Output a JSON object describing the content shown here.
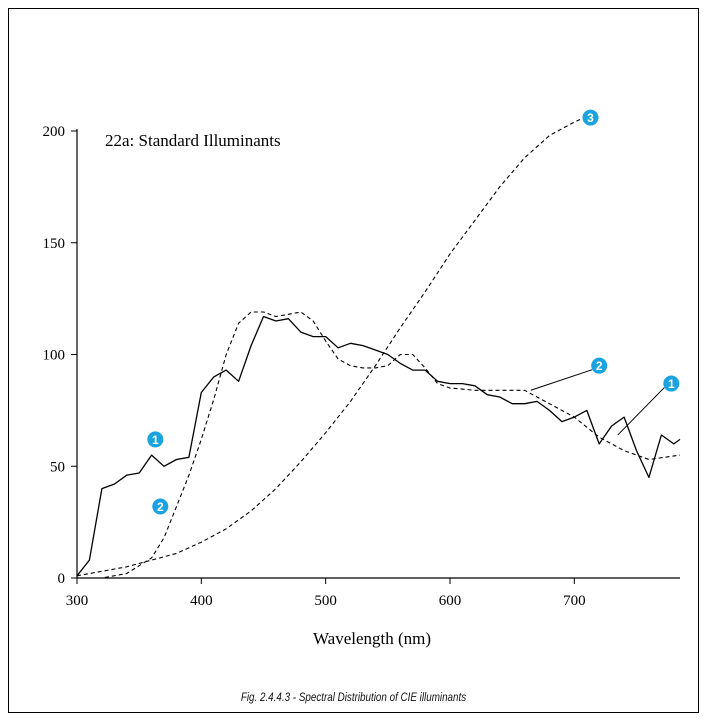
{
  "figure": {
    "caption": "Fig. 2.4.4.3 -  Spectral Distribution of CIE illuminants"
  },
  "colors": {
    "marker_fill": "#1aa3df",
    "line": "#000000"
  },
  "chart_data": {
    "type": "line",
    "title": "22a: Standard Illuminants",
    "xlabel": "Wavelength (nm)",
    "ylabel": "",
    "xlim": [
      300,
      785
    ],
    "ylim": [
      0,
      200
    ],
    "xticks": [
      300,
      400,
      500,
      600,
      700
    ],
    "yticks": [
      0,
      50,
      100,
      150,
      200
    ],
    "grid": false,
    "series": [
      {
        "marker": "1",
        "style": "solid",
        "x": [
          300,
          310,
          320,
          330,
          340,
          350,
          360,
          370,
          380,
          390,
          400,
          410,
          420,
          430,
          440,
          450,
          460,
          470,
          480,
          490,
          500,
          510,
          520,
          530,
          540,
          550,
          560,
          570,
          580,
          590,
          600,
          610,
          620,
          630,
          640,
          650,
          660,
          670,
          680,
          690,
          700,
          710,
          720,
          730,
          740,
          750,
          760,
          770,
          780,
          785
        ],
        "y": [
          1,
          8,
          40,
          42,
          46,
          47,
          55,
          50,
          53,
          54,
          83,
          90,
          93,
          88,
          104,
          117,
          115,
          116,
          110,
          108,
          108,
          103,
          105,
          104,
          102,
          100,
          96,
          93,
          93,
          88,
          87,
          87,
          86,
          82,
          81,
          78,
          78,
          79,
          75,
          70,
          72,
          75,
          60,
          68,
          72,
          57,
          45,
          64,
          60,
          62
        ]
      },
      {
        "marker": "2",
        "style": "dashed",
        "x": [
          300,
          320,
          340,
          360,
          370,
          380,
          390,
          400,
          410,
          420,
          430,
          440,
          450,
          460,
          470,
          480,
          490,
          500,
          510,
          520,
          530,
          540,
          550,
          560,
          570,
          580,
          590,
          600,
          620,
          640,
          660,
          680,
          700,
          720,
          740,
          760,
          785
        ],
        "y": [
          0,
          0,
          2,
          9,
          18,
          32,
          46,
          62,
          80,
          100,
          114,
          119,
          119,
          117,
          118,
          119,
          115,
          106,
          98,
          95,
          94,
          94,
          95,
          100,
          100,
          94,
          87,
          85,
          84,
          84,
          84,
          78,
          72,
          63,
          57,
          53,
          55
        ]
      },
      {
        "marker": "3",
        "style": "dashed",
        "x": [
          300,
          320,
          340,
          360,
          380,
          400,
          420,
          440,
          460,
          480,
          500,
          520,
          540,
          560,
          580,
          600,
          620,
          640,
          660,
          680,
          700,
          708
        ],
        "y": [
          1,
          3,
          5,
          8,
          11,
          16,
          22,
          30,
          40,
          52,
          65,
          79,
          95,
          112,
          128,
          145,
          160,
          175,
          188,
          198,
          204,
          206
        ]
      }
    ],
    "annotations": [
      {
        "label": "1",
        "series": 0,
        "x": 363,
        "y": 62,
        "leader": false
      },
      {
        "label": "2",
        "series": 1,
        "x": 367,
        "y": 32,
        "leader": false
      },
      {
        "label": "3",
        "series": 2,
        "x": 713,
        "y": 206,
        "leader": false
      },
      {
        "label": "2",
        "series": 1,
        "x": 720,
        "y": 95,
        "leader": true,
        "target_x": 665,
        "target_y": 84
      },
      {
        "label": "1",
        "series": 0,
        "x": 778,
        "y": 87,
        "leader": true,
        "target_x": 735,
        "target_y": 64
      }
    ]
  }
}
